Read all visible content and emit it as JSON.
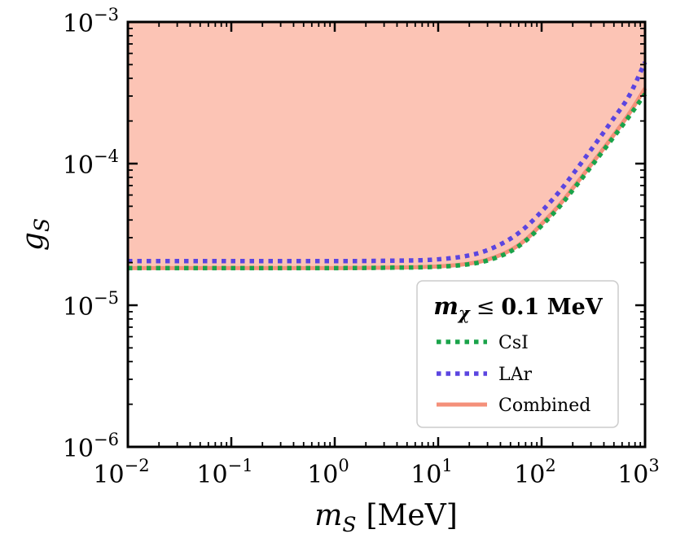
{
  "chart_data": {
    "type": "line",
    "title": "",
    "xlabel": {
      "symbol": "m",
      "subscript": "S",
      "unit": "[MeV]"
    },
    "ylabel": {
      "symbol": "g",
      "subscript": "S"
    },
    "xscale": "log",
    "yscale": "log",
    "xlim": [
      0.01,
      1000
    ],
    "ylim": [
      1e-06,
      0.001
    ],
    "x_ticks": [
      {
        "value": 0.01,
        "base": "10",
        "exp": "−2"
      },
      {
        "value": 0.1,
        "base": "10",
        "exp": "−1"
      },
      {
        "value": 1,
        "base": "10",
        "exp": "0"
      },
      {
        "value": 10,
        "base": "10",
        "exp": "1"
      },
      {
        "value": 100,
        "base": "10",
        "exp": "2"
      },
      {
        "value": 1000,
        "base": "10",
        "exp": "3"
      }
    ],
    "y_ticks": [
      {
        "value": 1e-06,
        "base": "10",
        "exp": "−6"
      },
      {
        "value": 1e-05,
        "base": "10",
        "exp": "−5"
      },
      {
        "value": 0.0001,
        "base": "10",
        "exp": "−4"
      },
      {
        "value": 0.001,
        "base": "10",
        "exp": "−3"
      }
    ],
    "x": [
      0.01,
      0.1,
      1,
      3,
      10,
      20,
      30,
      50,
      70,
      100,
      150,
      200,
      300,
      500,
      700,
      1000
    ],
    "series": [
      {
        "name": "CsI",
        "style": "dotted",
        "color": "#1aa34a",
        "values": [
          1.83e-05,
          1.83e-05,
          1.83e-05,
          1.84e-05,
          1.87e-05,
          1.95e-05,
          2.07e-05,
          2.4e-05,
          2.85e-05,
          3.65e-05,
          5e-05,
          6.5e-05,
          9.5e-05,
          0.000155,
          0.000215,
          0.00031
        ]
      },
      {
        "name": "LAr",
        "style": "dotted",
        "color": "#5b45e0",
        "values": [
          2.05e-05,
          2.05e-05,
          2.05e-05,
          2.06e-05,
          2.11e-05,
          2.25e-05,
          2.45e-05,
          2.95e-05,
          3.55e-05,
          4.6e-05,
          6.4e-05,
          8.4e-05,
          0.000125,
          0.00021,
          0.0003,
          0.00052
        ]
      },
      {
        "name": "Combined",
        "style": "solid",
        "color": "#f4907a",
        "values": [
          1.83e-05,
          1.83e-05,
          1.83e-05,
          1.84e-05,
          1.88e-05,
          1.97e-05,
          2.1e-05,
          2.45e-05,
          2.9e-05,
          3.75e-05,
          5.15e-05,
          6.7e-05,
          9.8e-05,
          0.00016,
          0.000225,
          0.00034
        ]
      }
    ],
    "excluded_region": {
      "bounded_by": "Combined",
      "fill_color": "#fcc4b5"
    },
    "legend": {
      "title": {
        "symbol": "m",
        "subscript": "χ",
        "relation": "≤",
        "value": "0.1 MeV"
      },
      "position": "lower-right",
      "entries": [
        "CsI",
        "LAr",
        "Combined"
      ]
    }
  }
}
